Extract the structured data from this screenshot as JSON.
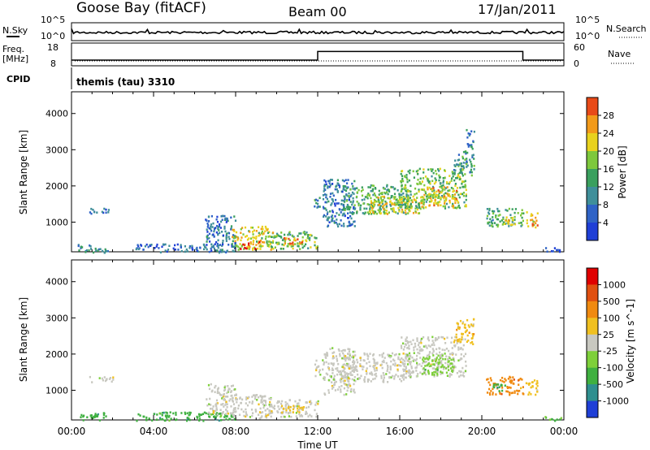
{
  "header": {
    "station": "Goose Bay (fitACF)",
    "beam": "Beam 00",
    "date": "17/Jan/2011"
  },
  "noise_panel": {
    "left_label": "N.Sky",
    "left_ticks": [
      "10^5",
      "10^0"
    ],
    "right_label": "N.Search",
    "right_ticks": [
      "10^5",
      "10^0"
    ]
  },
  "freq_panel": {
    "left_label_line1": "Freq.",
    "left_label_line2": "[MHz]",
    "left_ticks": [
      "18",
      "8"
    ],
    "right_label": "Nave",
    "right_ticks": [
      "60",
      "0"
    ],
    "cpid_label": "CPID",
    "cpid_value": "themis (tau) 3310"
  },
  "power_panel": {
    "ylabel": "Slant Range [km]",
    "yticks": [
      "4000",
      "3000",
      "2000",
      "1000"
    ],
    "colorbar_label": "Power [dB]",
    "colorbar_ticks": [
      "28",
      "24",
      "20",
      "16",
      "12",
      "8",
      "4"
    ],
    "colors": [
      "#1f3fd6",
      "#2f63c6",
      "#3f8f9a",
      "#3aa05e",
      "#7ec83c",
      "#e8d21e",
      "#f29a1a",
      "#e84a18",
      "#e00000"
    ]
  },
  "velocity_panel": {
    "ylabel": "Slant Range [km]",
    "yticks": [
      "4000",
      "3000",
      "2000",
      "1000"
    ],
    "colorbar_label": "Velocity [m s^-1]",
    "colorbar_ticks": [
      "1000",
      "500",
      "100",
      "25",
      "-25",
      "-100",
      "-500",
      "-1000"
    ],
    "colors": [
      "#1f3fd6",
      "#2f8f8f",
      "#3fb040",
      "#7ed03a",
      "#c8c8c0",
      "#f0c020",
      "#f08a10",
      "#e05010",
      "#e00000"
    ]
  },
  "xaxis": {
    "label": "Time UT",
    "ticks": [
      "00:00",
      "04:00",
      "08:00",
      "12:00",
      "16:00",
      "20:00",
      "00:00"
    ]
  },
  "chart_data": [
    {
      "type": "line",
      "title": "Goose Bay (fitACF)",
      "ylabel": "N.Sky",
      "x_unit": "hours UT",
      "xlim": [
        0,
        24
      ],
      "series": [
        {
          "name": "N.Sky",
          "x": [
            0,
            24
          ],
          "y": [
            10,
            10
          ]
        }
      ]
    },
    {
      "type": "line",
      "ylabel": "Freq. [MHz]",
      "xlim": [
        0,
        24
      ],
      "ylim": [
        8,
        18
      ],
      "series": [
        {
          "name": "Freq.",
          "x": [
            0,
            12,
            12,
            22,
            22,
            24
          ],
          "y": [
            10.3,
            10.3,
            14.4,
            14.4,
            10.3,
            10.3
          ]
        }
      ]
    },
    {
      "type": "heatmap",
      "ylabel": "Slant Range [km]",
      "xlabel": "Time UT",
      "colorbar": "Power [dB]",
      "xlim": [
        0,
        24
      ],
      "ylim": [
        180,
        4600
      ],
      "cmin": 0,
      "cmax": 32,
      "blobs": [
        {
          "t0": 0.3,
          "t1": 1.8,
          "r0": 180,
          "r1": 400,
          "v": 8
        },
        {
          "t0": 0.8,
          "t1": 2.0,
          "r0": 1250,
          "r1": 1400,
          "v": 6
        },
        {
          "t0": 3.0,
          "t1": 8.0,
          "r0": 180,
          "r1": 420,
          "v": 6
        },
        {
          "t0": 6.5,
          "t1": 8.0,
          "r0": 350,
          "r1": 1200,
          "v": 7
        },
        {
          "t0": 7.8,
          "t1": 9.8,
          "r0": 250,
          "r1": 900,
          "v": 18
        },
        {
          "t0": 8.2,
          "t1": 9.2,
          "r0": 280,
          "r1": 480,
          "v": 27
        },
        {
          "t0": 9.5,
          "t1": 12.0,
          "r0": 280,
          "r1": 760,
          "v": 14
        },
        {
          "t0": 10.2,
          "t1": 11.3,
          "r0": 380,
          "r1": 600,
          "v": 22
        },
        {
          "t0": 11.8,
          "t1": 12.1,
          "r0": 1400,
          "r1": 1850,
          "v": 10
        },
        {
          "t0": 12.2,
          "t1": 13.8,
          "r0": 900,
          "r1": 2200,
          "v": 7
        },
        {
          "t0": 13.2,
          "t1": 16.5,
          "r0": 1250,
          "r1": 2050,
          "v": 13
        },
        {
          "t0": 14.5,
          "t1": 17.0,
          "r0": 1250,
          "r1": 1750,
          "v": 19
        },
        {
          "t0": 16.0,
          "t1": 19.2,
          "r0": 1400,
          "r1": 2500,
          "v": 15
        },
        {
          "t0": 17.0,
          "t1": 18.8,
          "r0": 1450,
          "r1": 2000,
          "v": 21
        },
        {
          "t0": 18.6,
          "t1": 19.6,
          "r0": 2300,
          "r1": 3000,
          "v": 10
        },
        {
          "t0": 19.2,
          "t1": 19.6,
          "r0": 3000,
          "r1": 3600,
          "v": 7
        },
        {
          "t0": 20.2,
          "t1": 22.0,
          "r0": 900,
          "r1": 1400,
          "v": 12
        },
        {
          "t0": 21.0,
          "t1": 21.8,
          "r0": 950,
          "r1": 1200,
          "v": 20
        },
        {
          "t0": 22.1,
          "t1": 22.7,
          "r0": 850,
          "r1": 1300,
          "v": 22
        },
        {
          "t0": 23.0,
          "t1": 23.9,
          "r0": 180,
          "r1": 320,
          "v": 6
        }
      ]
    },
    {
      "type": "heatmap",
      "ylabel": "Slant Range [km]",
      "xlabel": "Time UT",
      "colorbar": "Velocity [m s^-1]",
      "xlim": [
        0,
        24
      ],
      "ylim": [
        180,
        4600
      ],
      "categories": [
        "1000",
        "500",
        "100",
        "25",
        "-25",
        "-100",
        "-500",
        "-1000"
      ],
      "blobs": [
        {
          "t0": 0.3,
          "t1": 1.8,
          "r0": 180,
          "r1": 400,
          "v": "100"
        },
        {
          "t0": 0.8,
          "t1": 2.0,
          "r0": 1250,
          "r1": 1400,
          "v": "-25"
        },
        {
          "t0": 3.0,
          "t1": 8.0,
          "r0": 180,
          "r1": 420,
          "v": "100"
        },
        {
          "t0": 6.5,
          "t1": 8.0,
          "r0": 350,
          "r1": 1200,
          "v": "-25"
        },
        {
          "t0": 7.8,
          "t1": 9.8,
          "r0": 250,
          "r1": 900,
          "v": "-25"
        },
        {
          "t0": 9.5,
          "t1": 12.0,
          "r0": 280,
          "r1": 760,
          "v": "-25"
        },
        {
          "t0": 10.2,
          "t1": 11.3,
          "r0": 380,
          "r1": 600,
          "v": "-100"
        },
        {
          "t0": 11.8,
          "t1": 12.1,
          "r0": 1400,
          "r1": 1850,
          "v": "-25"
        },
        {
          "t0": 12.2,
          "t1": 13.8,
          "r0": 900,
          "r1": 2200,
          "v": "-25"
        },
        {
          "t0": 13.2,
          "t1": 16.5,
          "r0": 1250,
          "r1": 2050,
          "v": "-25"
        },
        {
          "t0": 16.0,
          "t1": 19.2,
          "r0": 1400,
          "r1": 2500,
          "v": "-25"
        },
        {
          "t0": 17.0,
          "t1": 18.6,
          "r0": 1450,
          "r1": 2000,
          "v": "25"
        },
        {
          "t0": 18.6,
          "t1": 19.6,
          "r0": 2300,
          "r1": 3000,
          "v": "-100"
        },
        {
          "t0": 20.2,
          "t1": 22.0,
          "r0": 900,
          "r1": 1400,
          "v": "-500"
        },
        {
          "t0": 20.4,
          "t1": 21.2,
          "r0": 1000,
          "r1": 1200,
          "v": "100"
        },
        {
          "t0": 22.1,
          "t1": 22.7,
          "r0": 850,
          "r1": 1300,
          "v": "-100"
        },
        {
          "t0": 23.0,
          "t1": 23.9,
          "r0": 180,
          "r1": 320,
          "v": "100"
        }
      ]
    }
  ]
}
